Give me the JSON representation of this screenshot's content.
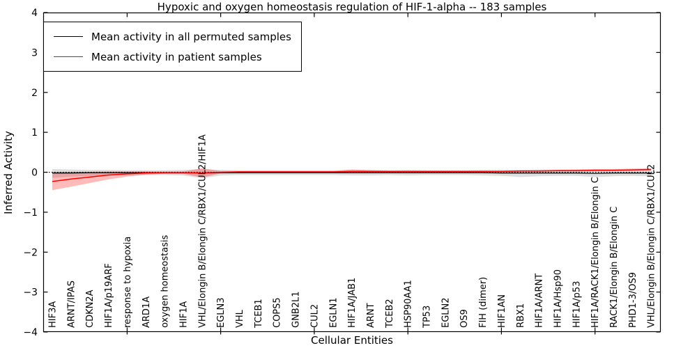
{
  "figure": {
    "title": "Hypoxic and oxygen homeostasis regulation of HIF-1-alpha -- 183 samples",
    "xlabel": "Cellular Entities",
    "ylabel": "Inferred Activity"
  },
  "legend": {
    "items": [
      {
        "label": "Mean activity in all permuted samples",
        "color": "#000000"
      },
      {
        "label": "Mean activity in patient samples",
        "color": "#ff0000"
      }
    ]
  },
  "chart_data": {
    "type": "line",
    "title": "Hypoxic and oxygen homeostasis regulation of HIF-1-alpha -- 183 samples",
    "xlabel": "Cellular Entities",
    "ylabel": "Inferred Activity",
    "ylim": [
      -4,
      4
    ],
    "yticks": [
      -4,
      -3,
      -2,
      -1,
      0,
      1,
      2,
      3,
      4
    ],
    "grid": false,
    "legend_position": "upper left",
    "zero_line": {
      "y": 0,
      "style": "dotted",
      "color": "#000000"
    },
    "xtick_category_indices": [
      4,
      9,
      14,
      19,
      24,
      29
    ],
    "categories": [
      "HIF3A",
      "ARNT/IPAS",
      "CDKN2A",
      "HIF1A/p19ARF",
      "response to hypoxia",
      "ARD1A",
      "oxygen homeostasis",
      "HIF1A",
      "VHL/Elongin B/Elongin C/RBX1/CUL2/HIF1A",
      "EGLN3",
      "VHL",
      "TCEB1",
      "COPS5",
      "GNB2L1",
      "CUL2",
      "EGLN1",
      "HIF1A/JAB1",
      "ARNT",
      "TCEB2",
      "HSP90AA1",
      "TP53",
      "EGLN2",
      "OS9",
      "FIH (dimer)",
      "HIF1AN",
      "RBX1",
      "HIF1A/ARNT",
      "HIF1A/Hsp90",
      "HIF1A/p53",
      "HIF1A/RACK1/Elongin B/Elongin C",
      "RACK1/Elongin B/Elongin C",
      "PHD1-3/OS9",
      "VHL/Elongin B/Elongin C/RBX1/CUL2"
    ],
    "series": [
      {
        "id": "permuted",
        "name": "Mean activity in all permuted samples",
        "color": "#000000",
        "line_width": 1.2,
        "values": [
          -0.02,
          -0.02,
          -0.01,
          -0.01,
          -0.01,
          -0.01,
          -0.01,
          -0.01,
          -0.02,
          -0.01,
          -0.01,
          -0.01,
          -0.01,
          -0.01,
          -0.01,
          -0.01,
          -0.01,
          -0.01,
          -0.01,
          -0.01,
          -0.01,
          -0.01,
          -0.01,
          -0.01,
          -0.02,
          -0.02,
          -0.02,
          -0.02,
          -0.02,
          -0.03,
          -0.02,
          -0.02,
          -0.02
        ],
        "band": {
          "fill": "rgba(0,0,0,0.13)",
          "upper": [
            0.08,
            0.07,
            0.06,
            0.06,
            0.05,
            0.05,
            0.05,
            0.06,
            0.08,
            0.06,
            0.05,
            0.05,
            0.05,
            0.05,
            0.05,
            0.05,
            0.06,
            0.06,
            0.05,
            0.06,
            0.05,
            0.05,
            0.05,
            0.06,
            0.06,
            0.06,
            0.07,
            0.07,
            0.07,
            0.07,
            0.07,
            0.07,
            0.08
          ],
          "lower": [
            -0.14,
            -0.11,
            -0.09,
            -0.08,
            -0.08,
            -0.07,
            -0.07,
            -0.08,
            -0.15,
            -0.08,
            -0.07,
            -0.07,
            -0.07,
            -0.07,
            -0.07,
            -0.07,
            -0.08,
            -0.08,
            -0.07,
            -0.08,
            -0.07,
            -0.07,
            -0.07,
            -0.08,
            -0.09,
            -0.12,
            -0.1,
            -0.09,
            -0.09,
            -0.12,
            -0.1,
            -0.09,
            -0.1
          ]
        }
      },
      {
        "id": "patient",
        "name": "Mean activity in patient samples",
        "color": "#ff0000",
        "line_width": 1.5,
        "values": [
          -0.23,
          -0.17,
          -0.12,
          -0.07,
          -0.04,
          -0.02,
          -0.01,
          -0.01,
          -0.02,
          0.0,
          0.01,
          0.01,
          0.01,
          0.01,
          0.01,
          0.01,
          0.02,
          0.02,
          0.02,
          0.02,
          0.02,
          0.02,
          0.02,
          0.02,
          0.02,
          0.03,
          0.03,
          0.04,
          0.04,
          0.05,
          0.05,
          0.06,
          0.07
        ],
        "band": {
          "fill": "rgba(255,0,0,0.27)",
          "upper": [
            0.01,
            0.01,
            0.01,
            0.02,
            0.02,
            0.02,
            0.02,
            0.02,
            0.1,
            0.03,
            0.03,
            0.03,
            0.03,
            0.03,
            0.03,
            0.03,
            0.07,
            0.05,
            0.04,
            0.04,
            0.04,
            0.04,
            0.04,
            0.04,
            0.04,
            0.05,
            0.05,
            0.06,
            0.07,
            0.08,
            0.08,
            0.09,
            0.1
          ],
          "lower": [
            -0.45,
            -0.36,
            -0.27,
            -0.18,
            -0.11,
            -0.06,
            -0.04,
            -0.04,
            -0.13,
            -0.03,
            -0.02,
            -0.01,
            -0.01,
            -0.01,
            -0.01,
            -0.01,
            -0.01,
            0.0,
            0.0,
            0.0,
            0.0,
            0.0,
            0.0,
            0.0,
            0.0,
            0.01,
            0.01,
            0.02,
            0.02,
            0.03,
            0.03,
            0.04,
            0.04
          ]
        }
      }
    ]
  }
}
